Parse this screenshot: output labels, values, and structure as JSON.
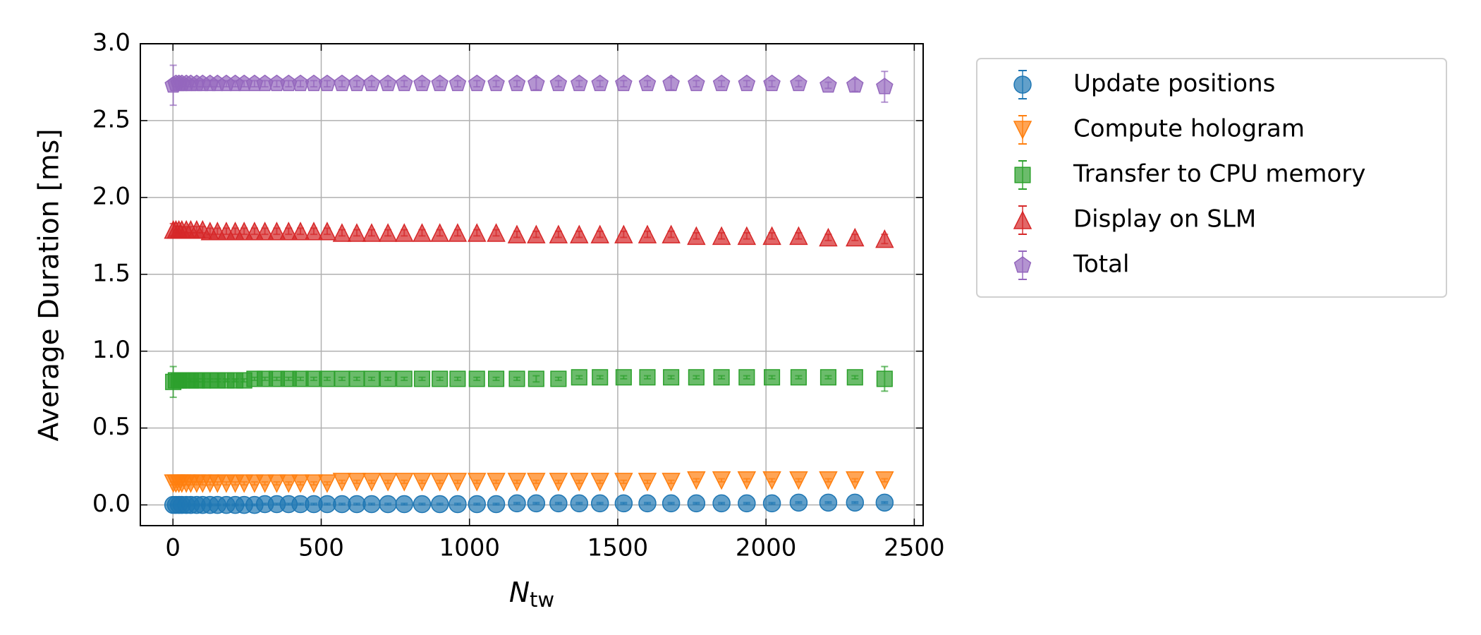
{
  "chart_data": {
    "type": "errorbar",
    "ylabel": "Average Duration [ms]",
    "xlabel": "N",
    "xlabel_subscript": "tw",
    "xlim": [
      -110,
      2530
    ],
    "xticks": [
      0,
      500,
      1000,
      1500,
      2000,
      2500
    ],
    "ylim": [
      -0.135,
      3.0
    ],
    "yticks": [
      {
        "value": 0,
        "label": "0.0"
      },
      0.5,
      {
        "value": 1,
        "label": "1.0"
      },
      1.5,
      {
        "value": 2,
        "label": "2.0"
      },
      2.5,
      {
        "value": 3,
        "label": "3.0"
      }
    ],
    "grid": true,
    "legend": "outside upper right",
    "x": [
      1,
      10,
      20,
      30,
      45,
      60,
      80,
      100,
      125,
      150,
      180,
      210,
      240,
      275,
      310,
      350,
      390,
      430,
      475,
      520,
      570,
      620,
      670,
      725,
      780,
      840,
      900,
      960,
      1025,
      1090,
      1160,
      1225,
      1300,
      1370,
      1440,
      1520,
      1600,
      1680,
      1765,
      1850,
      1935,
      2020,
      2110,
      2210,
      2300,
      2400
    ],
    "series": [
      {
        "name": "Update positions",
        "color": "#1f77b4",
        "marker": "circle",
        "values": [
          0,
          0,
          0,
          0,
          0,
          0,
          0,
          0,
          0,
          0,
          0,
          0,
          0,
          0,
          0.005,
          0.005,
          0.005,
          0.005,
          0.005,
          0.005,
          0.005,
          0.005,
          0.005,
          0.005,
          0.005,
          0.005,
          0.005,
          0.005,
          0.005,
          0.005,
          0.01,
          0.01,
          0.01,
          0.01,
          0.01,
          0.01,
          0.01,
          0.01,
          0.01,
          0.01,
          0.01,
          0.01,
          0.015,
          0.015,
          0.015,
          0.015
        ],
        "errors": [
          0.005,
          0.005,
          0.005,
          0.005,
          0.005,
          0.005,
          0.005,
          0.005,
          0.005,
          0.005,
          0.005,
          0.005,
          0.005,
          0.005,
          0.005,
          0.005,
          0.005,
          0.005,
          0.005,
          0.005,
          0.005,
          0.005,
          0.005,
          0.005,
          0.005,
          0.005,
          0.005,
          0.005,
          0.005,
          0.005,
          0.005,
          0.005,
          0.005,
          0.005,
          0.005,
          0.005,
          0.005,
          0.005,
          0.005,
          0.005,
          0.005,
          0.005,
          0.005,
          0.005,
          0.005,
          0.005
        ]
      },
      {
        "name": "Compute hologram",
        "color": "#ff7f0e",
        "marker": "triangle-down",
        "values": [
          0.14,
          0.14,
          0.14,
          0.14,
          0.14,
          0.14,
          0.14,
          0.14,
          0.14,
          0.14,
          0.14,
          0.14,
          0.14,
          0.14,
          0.14,
          0.14,
          0.14,
          0.14,
          0.14,
          0.14,
          0.15,
          0.15,
          0.15,
          0.15,
          0.15,
          0.15,
          0.15,
          0.15,
          0.15,
          0.15,
          0.15,
          0.15,
          0.15,
          0.15,
          0.15,
          0.15,
          0.15,
          0.15,
          0.16,
          0.16,
          0.16,
          0.16,
          0.16,
          0.16,
          0.16,
          0.16
        ],
        "errors": [
          0.01,
          0.01,
          0.01,
          0.01,
          0.01,
          0.01,
          0.01,
          0.01,
          0.01,
          0.01,
          0.01,
          0.01,
          0.01,
          0.01,
          0.01,
          0.01,
          0.01,
          0.01,
          0.01,
          0.01,
          0.01,
          0.01,
          0.01,
          0.01,
          0.01,
          0.01,
          0.01,
          0.01,
          0.01,
          0.01,
          0.01,
          0.01,
          0.01,
          0.01,
          0.01,
          0.01,
          0.01,
          0.01,
          0.01,
          0.01,
          0.01,
          0.01,
          0.01,
          0.01,
          0.01,
          0.01
        ]
      },
      {
        "name": "Transfer to CPU memory",
        "color": "#2ca02c",
        "marker": "square",
        "values": [
          0.8,
          0.81,
          0.81,
          0.81,
          0.81,
          0.81,
          0.81,
          0.81,
          0.81,
          0.81,
          0.81,
          0.81,
          0.81,
          0.82,
          0.82,
          0.82,
          0.82,
          0.82,
          0.82,
          0.82,
          0.82,
          0.82,
          0.82,
          0.82,
          0.82,
          0.82,
          0.82,
          0.82,
          0.82,
          0.82,
          0.82,
          0.82,
          0.82,
          0.83,
          0.83,
          0.83,
          0.83,
          0.83,
          0.83,
          0.83,
          0.83,
          0.83,
          0.83,
          0.83,
          0.83,
          0.82
        ],
        "errors": [
          0.1,
          0.01,
          0.01,
          0.01,
          0.01,
          0.01,
          0.01,
          0.01,
          0.01,
          0.01,
          0.01,
          0.01,
          0.01,
          0.01,
          0.01,
          0.01,
          0.01,
          0.01,
          0.01,
          0.01,
          0.01,
          0.01,
          0.01,
          0.01,
          0.01,
          0.01,
          0.01,
          0.01,
          0.01,
          0.01,
          0.01,
          0.02,
          0.01,
          0.01,
          0.01,
          0.01,
          0.01,
          0.01,
          0.01,
          0.01,
          0.01,
          0.01,
          0.01,
          0.01,
          0.01,
          0.08
        ]
      },
      {
        "name": "Display on SLM",
        "color": "#d62728",
        "marker": "triangle-up",
        "values": [
          1.79,
          1.79,
          1.79,
          1.79,
          1.79,
          1.79,
          1.79,
          1.79,
          1.78,
          1.78,
          1.78,
          1.78,
          1.78,
          1.78,
          1.78,
          1.78,
          1.78,
          1.78,
          1.78,
          1.78,
          1.77,
          1.77,
          1.77,
          1.77,
          1.77,
          1.77,
          1.77,
          1.77,
          1.77,
          1.77,
          1.76,
          1.76,
          1.76,
          1.76,
          1.76,
          1.76,
          1.76,
          1.76,
          1.75,
          1.75,
          1.75,
          1.75,
          1.75,
          1.74,
          1.74,
          1.73
        ],
        "errors": [
          0.04,
          0.02,
          0.02,
          0.02,
          0.02,
          0.02,
          0.02,
          0.02,
          0.02,
          0.02,
          0.02,
          0.02,
          0.02,
          0.02,
          0.02,
          0.02,
          0.02,
          0.02,
          0.02,
          0.02,
          0.02,
          0.02,
          0.02,
          0.02,
          0.02,
          0.02,
          0.02,
          0.02,
          0.02,
          0.02,
          0.02,
          0.02,
          0.02,
          0.02,
          0.02,
          0.02,
          0.02,
          0.02,
          0.02,
          0.02,
          0.02,
          0.02,
          0.02,
          0.02,
          0.02,
          0.03
        ]
      },
      {
        "name": "Total",
        "color": "#9467bd",
        "marker": "pentagon",
        "values": [
          2.73,
          2.74,
          2.74,
          2.74,
          2.74,
          2.74,
          2.74,
          2.74,
          2.74,
          2.74,
          2.74,
          2.74,
          2.74,
          2.74,
          2.74,
          2.74,
          2.74,
          2.74,
          2.74,
          2.74,
          2.74,
          2.74,
          2.74,
          2.74,
          2.74,
          2.74,
          2.74,
          2.74,
          2.74,
          2.74,
          2.74,
          2.74,
          2.74,
          2.74,
          2.74,
          2.74,
          2.74,
          2.74,
          2.74,
          2.74,
          2.74,
          2.74,
          2.74,
          2.73,
          2.73,
          2.72
        ],
        "errors": [
          0.13,
          0.02,
          0.02,
          0.02,
          0.02,
          0.02,
          0.02,
          0.02,
          0.02,
          0.02,
          0.02,
          0.02,
          0.02,
          0.02,
          0.02,
          0.02,
          0.02,
          0.02,
          0.02,
          0.02,
          0.02,
          0.02,
          0.02,
          0.02,
          0.02,
          0.02,
          0.02,
          0.02,
          0.02,
          0.02,
          0.02,
          0.04,
          0.02,
          0.02,
          0.02,
          0.02,
          0.02,
          0.04,
          0.02,
          0.02,
          0.02,
          0.02,
          0.02,
          0.02,
          0.04,
          0.1
        ]
      }
    ]
  }
}
